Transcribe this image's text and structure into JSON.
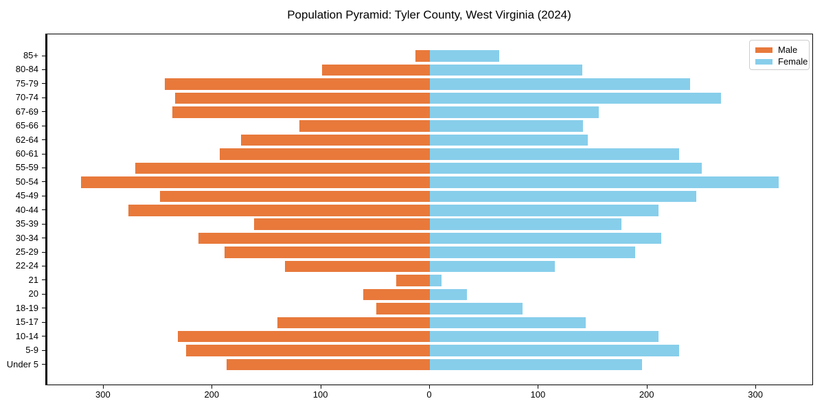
{
  "title": "Population Pyramid: Tyler County, West Virginia (2024)",
  "colors": {
    "male": "#e8793b",
    "female": "#87ceeb",
    "axis": "#000000",
    "legend_border": "#cccccc"
  },
  "legend": {
    "male_label": "Male",
    "female_label": "Female"
  },
  "chart_data": {
    "type": "bar",
    "subtype": "population-pyramid",
    "orientation": "horizontal",
    "title": "Population Pyramid: Tyler County, West Virginia (2024)",
    "categories": [
      "85+",
      "80-84",
      "75-79",
      "70-74",
      "67-69",
      "65-66",
      "62-64",
      "60-61",
      "55-59",
      "50-54",
      "45-49",
      "40-44",
      "35-39",
      "30-34",
      "25-29",
      "22-24",
      "21",
      "20",
      "18-19",
      "15-17",
      "10-14",
      "5-9",
      "Under 5"
    ],
    "series": [
      {
        "name": "Male",
        "side": "left",
        "color": "#e8793b",
        "values": [
          13,
          99,
          244,
          234,
          237,
          120,
          174,
          193,
          271,
          321,
          248,
          277,
          162,
          213,
          189,
          133,
          31,
          61,
          49,
          140,
          232,
          224,
          187
        ]
      },
      {
        "name": "Female",
        "side": "right",
        "color": "#87ceeb",
        "values": [
          64,
          140,
          239,
          268,
          155,
          141,
          145,
          229,
          250,
          321,
          245,
          210,
          176,
          213,
          189,
          115,
          11,
          34,
          85,
          143,
          210,
          229,
          195
        ]
      }
    ],
    "xlim": [
      -353,
      353
    ],
    "x_tick_values": [
      -300,
      -200,
      -100,
      0,
      100,
      200,
      300
    ],
    "x_tick_labels": [
      "300",
      "200",
      "100",
      "0",
      "100",
      "200",
      "300"
    ],
    "xlabel": "",
    "ylabel": "",
    "grid": false,
    "legend_position": "upper right",
    "zero_axis_line": true
  }
}
